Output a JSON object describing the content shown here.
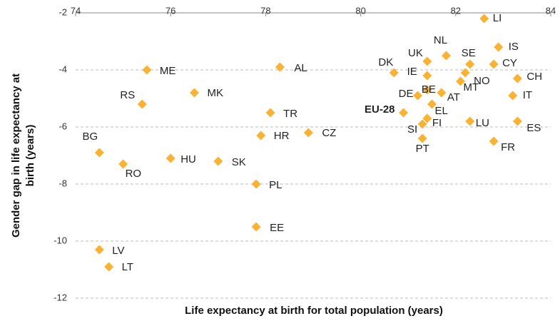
{
  "chart_data": {
    "type": "scatter",
    "xlabel": "Life expectancy at birth for total population (years)",
    "ylabel": [
      "Gender gap in life expectancy at",
      "birth (years)"
    ],
    "xlim": [
      74,
      84
    ],
    "xticks": [
      74,
      76,
      78,
      80,
      82,
      84
    ],
    "ylim": [
      -12,
      -2
    ],
    "yticks": [
      -2,
      -4,
      -6,
      -8,
      -10,
      -12
    ],
    "grid": true,
    "series": [
      {
        "color": "#f9b233",
        "labels": [
          "LI",
          "IS",
          "NL",
          "SE",
          "CY",
          "UK",
          "DK",
          "IE",
          "NO",
          "MT",
          "CH",
          "IT",
          "DE",
          "BE",
          "AT",
          "EL",
          "EU-28",
          "FI",
          "SI",
          "PT",
          "LU",
          "ES",
          "FR",
          "ME",
          "AL",
          "MK",
          "RS",
          "TR",
          "HR",
          "CZ",
          "BG",
          "HU",
          "SK",
          "RO",
          "PL",
          "EE",
          "LV",
          "LT"
        ],
        "x": [
          82.6,
          82.9,
          81.8,
          82.3,
          82.8,
          81.4,
          80.7,
          81.4,
          82.2,
          82.1,
          83.3,
          83.2,
          81.2,
          81.4,
          81.7,
          81.5,
          80.9,
          81.4,
          81.3,
          81.3,
          82.3,
          83.3,
          82.8,
          75.5,
          78.3,
          76.5,
          75.4,
          78.1,
          77.9,
          78.9,
          74.5,
          76.0,
          77.0,
          75.0,
          77.8,
          77.8,
          74.5,
          74.7
        ],
        "values": [
          -2.2,
          -3.2,
          -3.5,
          -3.8,
          -3.8,
          -3.7,
          -4.1,
          -4.2,
          -4.1,
          -4.4,
          -4.3,
          -4.9,
          -4.9,
          -4.7,
          -4.8,
          -5.2,
          -5.5,
          -5.7,
          -5.9,
          -6.4,
          -5.8,
          -5.8,
          -6.5,
          -4.0,
          -3.9,
          -4.8,
          -5.2,
          -5.5,
          -6.3,
          -6.2,
          -6.9,
          -7.1,
          -7.2,
          -7.3,
          -8.0,
          -9.5,
          -10.3,
          -10.9
        ]
      }
    ]
  }
}
